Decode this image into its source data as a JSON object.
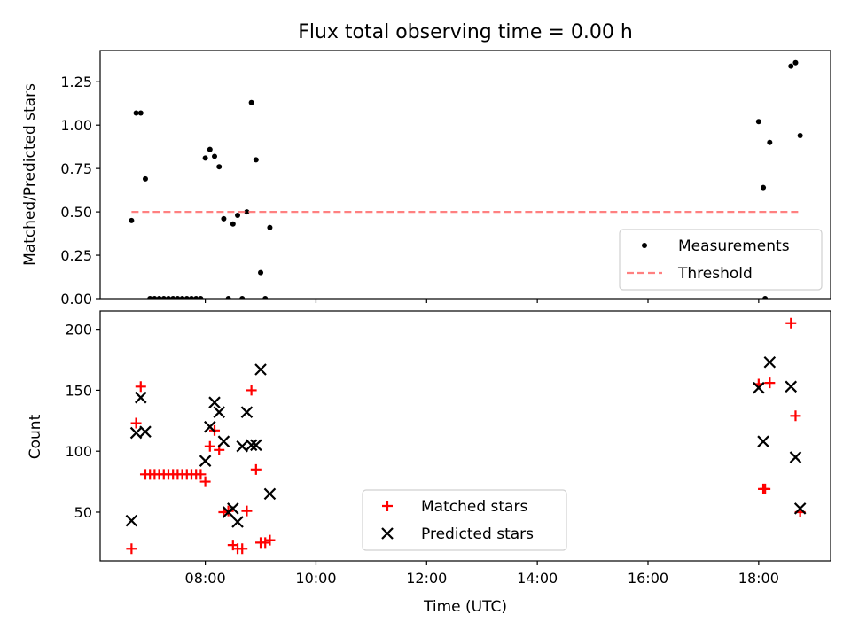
{
  "chart_data": [
    {
      "type": "scatter",
      "title": "Flux total observing time = 0.00 h",
      "ylabel": "Matched/Predicted stars",
      "xlabel": "",
      "xlim": [
        "06:06",
        "19:18"
      ],
      "ylim": [
        0,
        1.43
      ],
      "yticks": [
        "0.00",
        "0.25",
        "0.50",
        "0.75",
        "1.00",
        "1.25"
      ],
      "ytick_values": [
        0,
        0.25,
        0.5,
        0.75,
        1.0,
        1.25
      ],
      "xticks_show_labels": false,
      "legend": {
        "placement": "lower-right",
        "entries": [
          "Measurements",
          "Threshold"
        ]
      },
      "series": [
        {
          "name": "Measurements",
          "marker": "dot",
          "color": "#000000",
          "x": [
            "06:40",
            "06:45",
            "06:50",
            "06:55",
            "07:00",
            "07:05",
            "07:10",
            "07:15",
            "07:20",
            "07:25",
            "07:30",
            "07:35",
            "07:40",
            "07:45",
            "07:50",
            "07:55",
            "08:00",
            "08:05",
            "08:10",
            "08:15",
            "08:20",
            "08:25",
            "08:30",
            "08:35",
            "08:40",
            "08:45",
            "08:50",
            "08:55",
            "09:00",
            "09:05",
            "09:10",
            "18:00",
            "18:05",
            "18:07",
            "18:12",
            "18:35",
            "18:40",
            "18:45"
          ],
          "y": [
            0.45,
            1.07,
            1.07,
            0.69,
            0.0,
            0.0,
            0.0,
            0.0,
            0.0,
            0.0,
            0.0,
            0.0,
            0.0,
            0.0,
            0.0,
            0.0,
            0.81,
            0.86,
            0.82,
            0.76,
            0.46,
            0.0,
            0.43,
            0.48,
            0.0,
            0.5,
            1.13,
            0.8,
            0.15,
            0.0,
            0.41,
            1.02,
            0.64,
            0.0,
            0.9,
            1.34,
            1.36,
            0.94
          ]
        },
        {
          "name": "Threshold",
          "style": "dashed",
          "color": "#ff8080",
          "x": [
            "06:40",
            "18:45"
          ],
          "y": [
            0.5,
            0.5
          ]
        }
      ]
    },
    {
      "type": "scatter",
      "title": "",
      "ylabel": "Count",
      "xlabel": "Time (UTC)",
      "xlim": [
        "06:06",
        "19:18"
      ],
      "ylim": [
        10,
        215
      ],
      "yticks": [
        "50",
        "100",
        "150",
        "200"
      ],
      "ytick_values": [
        50,
        100,
        150,
        200
      ],
      "xticks": [
        "08:00",
        "10:00",
        "12:00",
        "14:00",
        "16:00",
        "18:00"
      ],
      "legend": {
        "placement": "lower-center",
        "entries": [
          "Matched stars",
          "Predicted stars"
        ]
      },
      "series": [
        {
          "name": "Matched stars",
          "marker": "plus",
          "color": "#ff0000",
          "x": [
            "06:40",
            "06:45",
            "06:50",
            "06:55",
            "07:00",
            "07:05",
            "07:10",
            "07:15",
            "07:20",
            "07:25",
            "07:30",
            "07:35",
            "07:40",
            "07:45",
            "07:50",
            "07:55",
            "08:00",
            "08:05",
            "08:10",
            "08:15",
            "08:20",
            "08:25",
            "08:30",
            "08:35",
            "08:40",
            "08:45",
            "08:50",
            "08:55",
            "09:00",
            "09:05",
            "09:10",
            "18:00",
            "18:05",
            "18:07",
            "18:12",
            "18:35",
            "18:40",
            "18:45"
          ],
          "y": [
            20,
            123,
            153,
            81,
            81,
            81,
            81,
            81,
            81,
            81,
            81,
            81,
            81,
            81,
            81,
            81,
            75,
            104,
            117,
            101,
            50,
            51,
            23,
            20,
            20,
            51,
            150,
            85,
            25,
            25,
            27,
            155,
            69,
            69,
            156,
            205,
            129,
            50
          ]
        },
        {
          "name": "Predicted stars",
          "marker": "x",
          "color": "#000000",
          "x": [
            "06:40",
            "06:45",
            "06:50",
            "06:55",
            "08:00",
            "08:05",
            "08:10",
            "08:15",
            "08:20",
            "08:25",
            "08:30",
            "08:35",
            "08:40",
            "08:45",
            "08:50",
            "08:55",
            "09:00",
            "09:10",
            "18:00",
            "18:05",
            "18:12",
            "18:35",
            "18:40",
            "18:45"
          ],
          "y": [
            43,
            115,
            144,
            116,
            92,
            120,
            140,
            132,
            108,
            50,
            53,
            42,
            104,
            132,
            105,
            105,
            167,
            65,
            152,
            108,
            173,
            153,
            95,
            53
          ]
        }
      ]
    }
  ]
}
